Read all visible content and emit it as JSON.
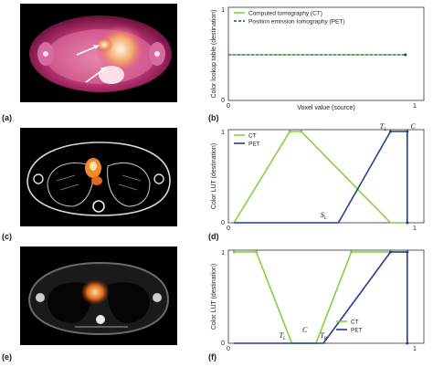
{
  "panels": {
    "a": {
      "label": "(a)"
    },
    "b": {
      "label": "(b)"
    },
    "c": {
      "label": "(c)"
    },
    "d": {
      "label": "(d)"
    },
    "e": {
      "label": "(e)"
    },
    "f": {
      "label": "(f)"
    }
  },
  "colors": {
    "ct": "#7fd33a",
    "pet": "#1f3f8f",
    "axis": "#333333"
  },
  "chart_data": [
    {
      "type": "line",
      "panel": "(b)",
      "xlabel": "Voxel value (source)",
      "ylabel": "Color lookup table (destination)",
      "xlim": [
        0,
        1
      ],
      "ylim": [
        0,
        1
      ],
      "y_ticks": [
        "0",
        "1"
      ],
      "x_ticks": [
        "0",
        "1"
      ],
      "legend": "top-left",
      "series": [
        {
          "name": "Computed tomography (CT)",
          "color": "#7fd33a",
          "dash": false,
          "points": [
            [
              0,
              0.5
            ],
            [
              0.95,
              0.5
            ]
          ]
        },
        {
          "name": "Position emission tomography (PET)",
          "color": "#1f3f8f",
          "dash": true,
          "points": [
            [
              0,
              0.5
            ],
            [
              0.95,
              0.5
            ]
          ]
        }
      ],
      "annotations": []
    },
    {
      "type": "line",
      "panel": "(d)",
      "xlabel": "",
      "ylabel": "Color LUT (destination)",
      "xlim": [
        0,
        1
      ],
      "ylim": [
        0,
        1
      ],
      "y_ticks": [
        "0",
        "1"
      ],
      "x_ticks": [
        "0",
        "1"
      ],
      "legend": "top-left",
      "series": [
        {
          "name": "CT",
          "color": "#7fd33a",
          "dash": false,
          "points": [
            [
              0.03,
              0
            ],
            [
              0.33,
              1
            ],
            [
              0.39,
              1
            ],
            [
              0.87,
              0
            ],
            [
              0.96,
              0
            ]
          ]
        },
        {
          "name": "PET",
          "color": "#1f3f8f",
          "dash": false,
          "points": [
            [
              0.03,
              0
            ],
            [
              0.59,
              0
            ],
            [
              0.87,
              1
            ],
            [
              0.96,
              1
            ],
            [
              0.96,
              0
            ]
          ]
        }
      ],
      "annotations": [
        {
          "text": "T",
          "sub": "L",
          "x": 0.84,
          "y": 1.03
        },
        {
          "text": "C",
          "sub": "",
          "x": 1.0,
          "y": 1.03
        },
        {
          "text": "S",
          "sub": "L",
          "x": 0.52,
          "y": 0.06
        }
      ]
    },
    {
      "type": "line",
      "panel": "(f)",
      "xlabel": "",
      "ylabel": "Color LUT (destination)",
      "xlim": [
        0,
        1
      ],
      "ylim": [
        0,
        1
      ],
      "y_ticks": [
        "0",
        "1"
      ],
      "x_ticks": [
        "0",
        "1"
      ],
      "legend": "bottom-right",
      "series": [
        {
          "name": "CT",
          "color": "#7fd33a",
          "dash": false,
          "points": [
            [
              0.03,
              1
            ],
            [
              0.15,
              1
            ],
            [
              0.34,
              0
            ],
            [
              0.47,
              0
            ],
            [
              0.66,
              1
            ],
            [
              0.96,
              1
            ]
          ]
        },
        {
          "name": "PET",
          "color": "#1f3f8f",
          "dash": false,
          "points": [
            [
              0.03,
              0
            ],
            [
              0.51,
              0
            ],
            [
              0.87,
              1
            ],
            [
              0.96,
              1
            ],
            [
              0.96,
              0
            ]
          ]
        }
      ],
      "annotations": [
        {
          "text": "T",
          "sub": "L",
          "x": 0.3,
          "y": 0.06
        },
        {
          "text": "C",
          "sub": "",
          "x": 0.42,
          "y": 0.12
        },
        {
          "text": "T",
          "sub": "R",
          "x": 0.52,
          "y": 0.06
        }
      ]
    }
  ]
}
